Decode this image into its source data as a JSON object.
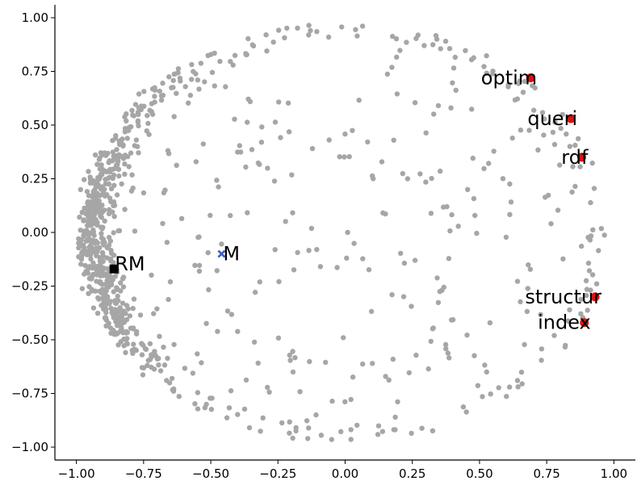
{
  "chart_data": {
    "type": "scatter",
    "xlim": [
      -1.08,
      1.08
    ],
    "ylim": [
      -1.06,
      1.06
    ],
    "x_ticks": [
      -1.0,
      -0.75,
      -0.5,
      -0.25,
      0.0,
      0.25,
      0.5,
      0.75,
      1.0
    ],
    "x_tick_labels": [
      "−1.00",
      "−0.75",
      "−0.50",
      "−0.25",
      "0.00",
      "0.25",
      "0.50",
      "0.75",
      "1.00"
    ],
    "y_ticks": [
      1.0,
      0.75,
      0.5,
      0.25,
      0.0,
      -0.25,
      -0.5,
      -0.75,
      -1.0
    ],
    "y_tick_labels": [
      "1.00",
      "0.75",
      "0.50",
      "0.25",
      "0.00",
      "−0.25",
      "−0.50",
      "−0.75",
      "−1.00"
    ],
    "grid": false,
    "spines": [
      "left",
      "bottom"
    ],
    "colors": {
      "background_points": "#a6a6a6",
      "highlighted_words": "#dd1111",
      "centroid_M": "#3a5fcd",
      "RM": "#000000"
    },
    "highlighted_points": [
      {
        "label": "optim",
        "x": 0.69,
        "y": 0.72
      },
      {
        "label": "queri",
        "x": 0.84,
        "y": 0.53
      },
      {
        "label": "rdf",
        "x": 0.88,
        "y": 0.35
      },
      {
        "label": "structur",
        "x": 0.93,
        "y": -0.3
      },
      {
        "label": "index",
        "x": 0.89,
        "y": -0.42
      }
    ],
    "special_points": [
      {
        "label": "M",
        "x": -0.46,
        "y": -0.1,
        "marker": "x"
      },
      {
        "label": "RM",
        "x": -0.86,
        "y": -0.17,
        "marker": "square"
      }
    ]
  }
}
